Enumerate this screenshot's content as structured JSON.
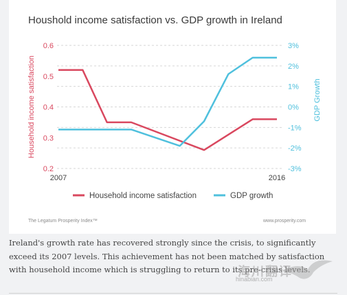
{
  "chart_data": {
    "type": "line",
    "title": "Houshold income satisfaction vs. GDP growth in Ireland",
    "y_left_label": "Household income satisfaction",
    "y_right_label": "GDP Growth",
    "y_left_ticks": [
      "0.2",
      "0.3",
      "0.4",
      "0.5",
      "0.6"
    ],
    "y_left_range": [
      0.2,
      0.6
    ],
    "y_right_ticks": [
      "-3%",
      "-2%",
      "-1%",
      "0%",
      "1%",
      "2%",
      "3%"
    ],
    "y_right_range": [
      -3,
      3
    ],
    "x_range": [
      2007,
      2016
    ],
    "x_tick_labels": [
      "2007",
      "2016"
    ],
    "grid": "horizontal-dashed",
    "legend_position": "bottom",
    "series": [
      {
        "name": "Household income satisfaction",
        "axis": "left",
        "color": "#d9485f",
        "points": [
          [
            2007,
            0.52
          ],
          [
            2008,
            0.52
          ],
          [
            2009,
            0.35
          ],
          [
            2010,
            0.35
          ],
          [
            2013,
            0.26
          ],
          [
            2015,
            0.36
          ],
          [
            2016,
            0.36
          ]
        ]
      },
      {
        "name": "GDP growth",
        "axis": "right",
        "color": "#4fc0dd",
        "points": [
          [
            2007,
            -1.1
          ],
          [
            2010,
            -1.1
          ],
          [
            2012,
            -1.9
          ],
          [
            2013,
            -0.7
          ],
          [
            2014,
            1.6
          ],
          [
            2015,
            2.4
          ],
          [
            2016,
            2.4
          ]
        ]
      }
    ]
  },
  "footer": {
    "source_left": "The Legatum Prosperity Index™",
    "source_right": "www.prosperity.com"
  },
  "caption": "Ireland's growth rate has recovered strongly since the crisis, to significantly exceed its 2007 levels. This achievement has not been matched by satisfaction with household income which is struggling to return to its pre-crisis levels.",
  "watermark": {
    "text_cn": "海川翻译",
    "text_en": "hinabian.com"
  }
}
